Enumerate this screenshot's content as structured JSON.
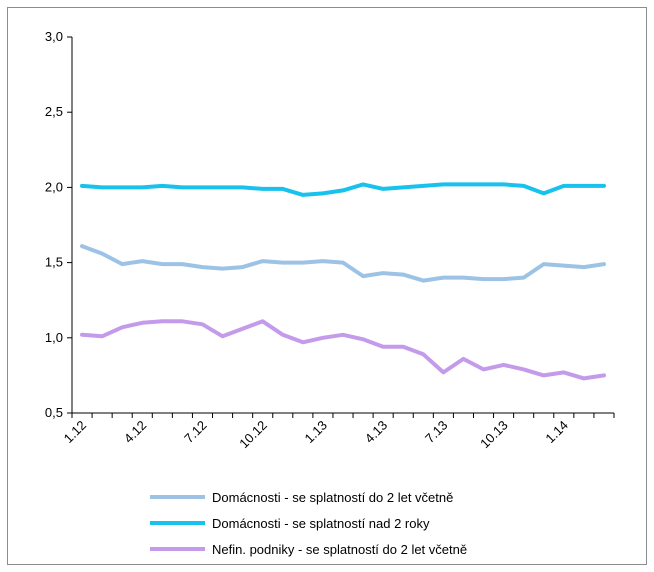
{
  "chart_data": {
    "type": "line",
    "x_tick_labels": [
      "1.12",
      "4.12",
      "7.12",
      "10.12",
      "1.13",
      "4.13",
      "7.13",
      "10.13",
      "1.14"
    ],
    "ylim": [
      0.5,
      3.0
    ],
    "y_ticks": [
      "0,5",
      "1,0",
      "1,5",
      "2,0",
      "2,5",
      "3,0"
    ],
    "grid": false,
    "legend_position": "bottom",
    "series": [
      {
        "name": "Domácnosti - se splatností do 2 let včetně",
        "color": "#9cc3e6",
        "values": [
          1.61,
          1.56,
          1.49,
          1.51,
          1.49,
          1.49,
          1.47,
          1.46,
          1.47,
          1.51,
          1.5,
          1.5,
          1.51,
          1.5,
          1.41,
          1.43,
          1.42,
          1.38,
          1.4,
          1.4,
          1.39,
          1.39,
          1.4,
          1.49,
          1.48,
          1.47,
          1.49
        ]
      },
      {
        "name": "Domácnosti - se splatností nad 2 roky",
        "color": "#19c1ed",
        "values": [
          2.01,
          2.0,
          2.0,
          2.0,
          2.01,
          2.0,
          2.0,
          2.0,
          2.0,
          1.99,
          1.99,
          1.95,
          1.96,
          1.98,
          2.02,
          1.99,
          2.0,
          2.01,
          2.02,
          2.02,
          2.02,
          2.02,
          2.01,
          1.96,
          2.01,
          2.01,
          2.01
        ]
      },
      {
        "name": "Nefin. podniky - se splatností do 2 let včetně",
        "color": "#c39bea",
        "values": [
          1.02,
          1.01,
          1.07,
          1.1,
          1.11,
          1.11,
          1.09,
          1.01,
          1.06,
          1.11,
          1.02,
          0.97,
          1.0,
          1.02,
          0.99,
          0.94,
          0.94,
          0.89,
          0.77,
          0.86,
          0.79,
          0.82,
          0.79,
          0.75,
          0.77,
          0.73,
          0.75
        ]
      }
    ]
  }
}
